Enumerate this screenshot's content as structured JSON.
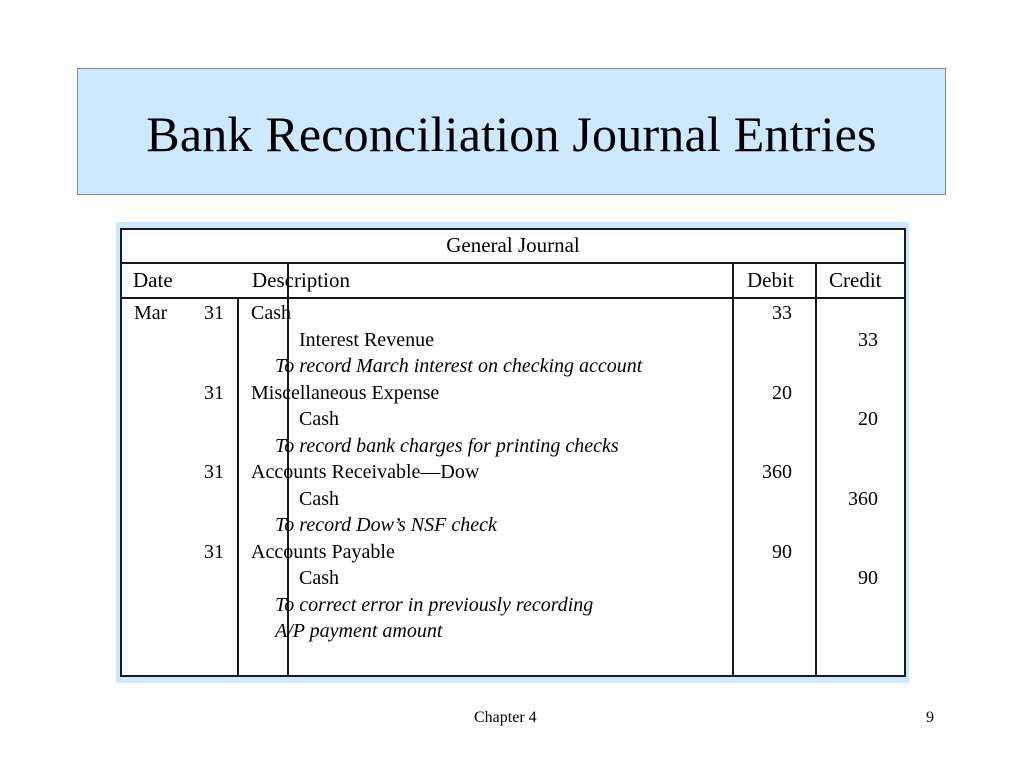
{
  "slide": {
    "title": "Bank Reconciliation Journal Entries",
    "footer_center": "Chapter 4",
    "page_number": "9"
  },
  "journal": {
    "title": "General Journal",
    "headers": {
      "date": "Date",
      "description": "Description",
      "debit": "Debit",
      "credit": "Credit"
    },
    "entries": [
      {
        "month": "Mar",
        "day": "31",
        "debit_account": "Cash",
        "debit_amount": "33",
        "credit_account": "Interest Revenue",
        "credit_amount": "33",
        "memo": [
          "To record March interest on checking account"
        ]
      },
      {
        "month": "",
        "day": "31",
        "debit_account": "Miscellaneous Expense",
        "debit_amount": "20",
        "credit_account": "Cash",
        "credit_amount": "20",
        "memo": [
          "To record bank charges for printing checks"
        ]
      },
      {
        "month": "",
        "day": "31",
        "debit_account": "Accounts Receivable—Dow",
        "debit_amount": "360",
        "credit_account": "Cash",
        "credit_amount": "360",
        "memo": [
          "To record Dow’s NSF check"
        ]
      },
      {
        "month": "",
        "day": "31",
        "debit_account": "Accounts Payable",
        "debit_amount": "90",
        "credit_account": "Cash",
        "credit_amount": "90",
        "memo": [
          "To correct error in previously recording",
          "A/P payment amount"
        ]
      }
    ]
  }
}
